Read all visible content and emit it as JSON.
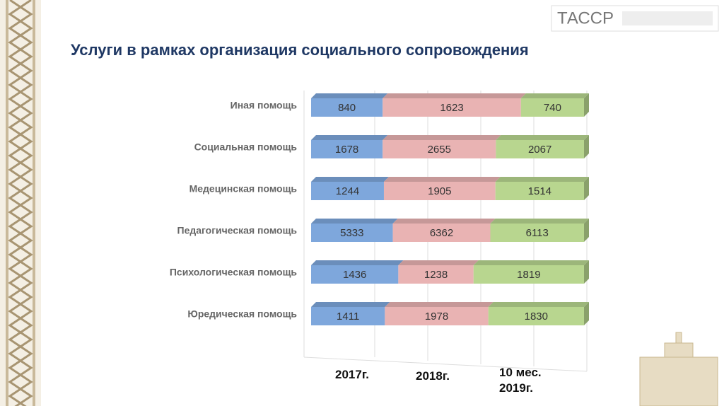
{
  "chart_data": {
    "type": "bar",
    "stacked": true,
    "horizontal": true,
    "title": "Услуги в рамках организация социального сопровождения",
    "categories": [
      "Иная помощь",
      "Социальная помощь",
      "Медецинская помощь",
      "Педагогическая помощь",
      "Психологическая помощь",
      "Юредическая помощь"
    ],
    "series": [
      {
        "name": "2017г.",
        "color": "#7ea7dc",
        "values": [
          840,
          1678,
          1244,
          5333,
          1436,
          1411
        ]
      },
      {
        "name": "2018г.",
        "color": "#e9b3b3",
        "values": [
          1623,
          2655,
          1905,
          6362,
          1238,
          1978
        ]
      },
      {
        "name": "10 мес. 2019г.",
        "color": "#b8d68f",
        "values": [
          740,
          2067,
          1514,
          6113,
          1819,
          1830
        ]
      }
    ]
  },
  "logo": "ТАССР"
}
